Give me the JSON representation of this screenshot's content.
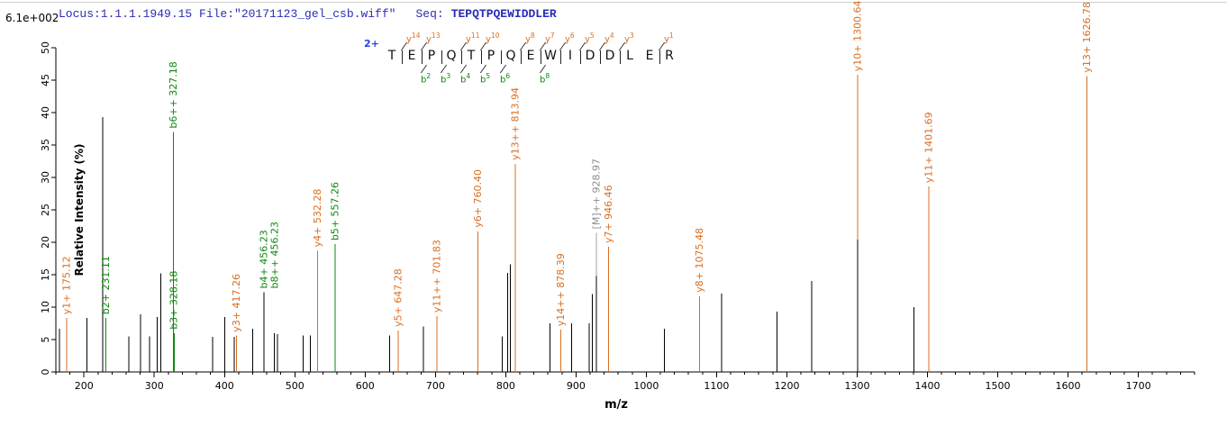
{
  "header": {
    "locus_file": "Locus:1.1.1.1949.15 File:\"20171123_gel_csb.wiff\"",
    "seq_label": "Seq:",
    "sequence": "TEPQTPQEWIDDLER",
    "scale_readout": "6.1e+002"
  },
  "ladder": {
    "charge_label": "2+",
    "residues": [
      "T",
      "E",
      "P",
      "Q",
      "T",
      "P",
      "Q",
      "E",
      "W",
      "I",
      "D",
      "D",
      "L",
      "E",
      "R"
    ],
    "y_marks": [
      {
        "label": "y14",
        "gap": 1
      },
      {
        "label": "y13",
        "gap": 2
      },
      {
        "label": "y11",
        "gap": 4
      },
      {
        "label": "y10",
        "gap": 5
      },
      {
        "label": "y8",
        "gap": 7
      },
      {
        "label": "y7",
        "gap": 8
      },
      {
        "label": "y6",
        "gap": 9
      },
      {
        "label": "y5",
        "gap": 10
      },
      {
        "label": "y4",
        "gap": 11
      },
      {
        "label": "y3",
        "gap": 12
      },
      {
        "label": "y1",
        "gap": 14
      }
    ],
    "b_marks": [
      {
        "label": "b2",
        "gap": 2
      },
      {
        "label": "b3",
        "gap": 3
      },
      {
        "label": "b4",
        "gap": 4
      },
      {
        "label": "b5",
        "gap": 5
      },
      {
        "label": "b6",
        "gap": 6
      },
      {
        "label": "b8",
        "gap": 8
      }
    ]
  },
  "axes": {
    "x_label": "m/z",
    "y_label": "Relative  Intensity (%)",
    "x_min": 160,
    "x_max": 1780,
    "x_major_ticks": [
      200,
      300,
      400,
      500,
      600,
      700,
      800,
      900,
      1000,
      1100,
      1200,
      1300,
      1400,
      1500,
      1600,
      1700
    ],
    "x_minor_step": 20,
    "y_min": 0,
    "y_max": 50,
    "y_tick_step": 5
  },
  "colors": {
    "y_ion": "#d96e20",
    "b_ion": "#0e860e",
    "unassigned": "#000000",
    "precursor_peak": "#000000",
    "precursor_label": "#8c8c8c",
    "leader_line": "#a0a0a0",
    "axis": "#000000",
    "header_text": "#2b2bb8",
    "charge_text": "#2b43d8"
  },
  "chart_data": {
    "type": "bar",
    "subtype": "ms2-stick-spectrum",
    "title": "",
    "xlabel": "m/z",
    "ylabel": "Relative Intensity (%)",
    "xlim": [
      160,
      1780
    ],
    "ylim": [
      0,
      50
    ],
    "grid": false,
    "absolute_intensity_scale": "6.1e+002",
    "assigned_peaks": [
      {
        "label": "y1+ 175.12",
        "mz": 175.12,
        "intensity": 8.3,
        "series": "y"
      },
      {
        "label": "b2+ 231.11",
        "mz": 231.11,
        "intensity": 8.3,
        "series": "b"
      },
      {
        "label": "b6++ 327.18",
        "mz": 327.18,
        "intensity": 37.0,
        "series": "b"
      },
      {
        "label": "b3+ 328.18",
        "mz": 328.18,
        "intensity": 6.0,
        "series": "b",
        "stroke_width": 2
      },
      {
        "label": "y3+ 417.26",
        "mz": 417.26,
        "intensity": 5.6,
        "series": "y"
      },
      {
        "label": "b4+ 456.23",
        "mz": 456.23,
        "intensity": 12.3,
        "series": "b",
        "peak_color": "#000000"
      },
      {
        "label": "b8++ 456.23",
        "mz": 456.23,
        "intensity": 12.3,
        "series": "b",
        "label_only": true,
        "label_dx": 12
      },
      {
        "label": "y4+ 532.28",
        "mz": 532.28,
        "intensity": 18.7,
        "series": "y"
      },
      {
        "label": "b5+ 557.26",
        "mz": 557.26,
        "intensity": 19.7,
        "series": "b"
      },
      {
        "label": "y5+ 647.28",
        "mz": 647.28,
        "intensity": 6.4,
        "series": "y"
      },
      {
        "label": "y11++ 701.83",
        "mz": 701.83,
        "intensity": 8.6,
        "series": "y"
      },
      {
        "label": "y6+ 760.40",
        "mz": 760.4,
        "intensity": 21.7,
        "series": "y"
      },
      {
        "label": "y13++ 813.94",
        "mz": 813.94,
        "intensity": 32.1,
        "series": "y"
      },
      {
        "label": "y14++ 878.39",
        "mz": 878.39,
        "intensity": 6.5,
        "series": "y"
      },
      {
        "label": "[M]++ 928.97",
        "mz": 928.97,
        "intensity": 14.8,
        "series": "precursor",
        "leader": 48
      },
      {
        "label": "y7+ 946.46",
        "mz": 946.46,
        "intensity": 19.3,
        "series": "y"
      },
      {
        "label": "y8+ 1075.48",
        "mz": 1075.48,
        "intensity": 11.7,
        "series": "y"
      },
      {
        "label": "y10+ 1300.64",
        "mz": 1300.64,
        "intensity": 45.8,
        "series": "y"
      },
      {
        "label": "y11+ 1401.69",
        "mz": 1401.69,
        "intensity": 28.6,
        "series": "y"
      },
      {
        "label": "y13+ 1626.78",
        "mz": 1626.78,
        "intensity": 45.6,
        "series": "y"
      }
    ],
    "unassigned_peaks": [
      [
        165,
        6.7
      ],
      [
        204.5,
        8.3
      ],
      [
        226.5,
        39.3
      ],
      [
        264,
        5.5
      ],
      [
        280.5,
        8.9
      ],
      [
        293,
        5.5
      ],
      [
        304.5,
        8.5
      ],
      [
        309.5,
        15.2
      ],
      [
        383,
        5.4
      ],
      [
        400,
        8.5
      ],
      [
        414,
        5.4
      ],
      [
        440,
        6.7
      ],
      [
        471,
        6.0
      ],
      [
        475,
        5.8
      ],
      [
        512,
        5.6
      ],
      [
        522,
        5.6
      ],
      [
        635,
        5.6
      ],
      [
        683,
        7.0
      ],
      [
        795,
        5.5
      ],
      [
        803,
        15.3
      ],
      [
        806.5,
        16.6
      ],
      [
        863,
        7.5
      ],
      [
        894,
        7.5
      ],
      [
        919,
        7.5
      ],
      [
        923.5,
        12.0
      ],
      [
        1026,
        6.7
      ],
      [
        1107,
        12.1
      ],
      [
        1186,
        9.3
      ],
      [
        1235,
        14.0
      ],
      [
        1300.64,
        20.4
      ],
      [
        1381,
        10.0
      ]
    ]
  }
}
